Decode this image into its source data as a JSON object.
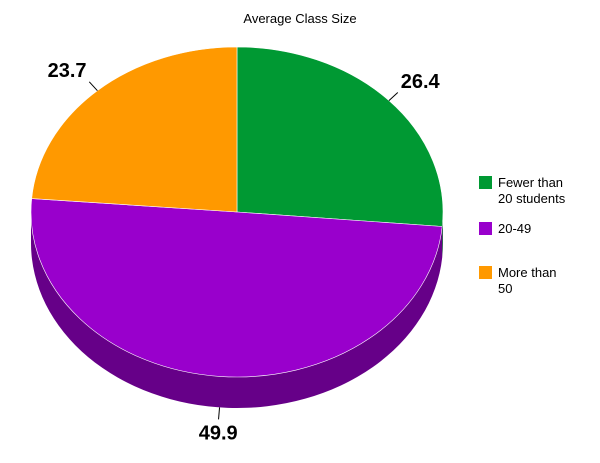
{
  "chart_data": {
    "type": "pie",
    "title": "Average Class Size",
    "three_d": true,
    "legend_position": "right",
    "categories": [
      "Fewer than 20 students",
      "20-49",
      "More than 50"
    ],
    "legend_lines": [
      [
        "Fewer than",
        "20 students"
      ],
      [
        "20-49"
      ],
      [
        "More than",
        "50"
      ]
    ],
    "values": [
      26.4,
      49.9,
      23.7
    ],
    "colors": [
      "#009933",
      "#9900cc",
      "#ff9900"
    ],
    "side_colors": [
      "#006b24",
      "#660088",
      "#b36b00"
    ]
  }
}
